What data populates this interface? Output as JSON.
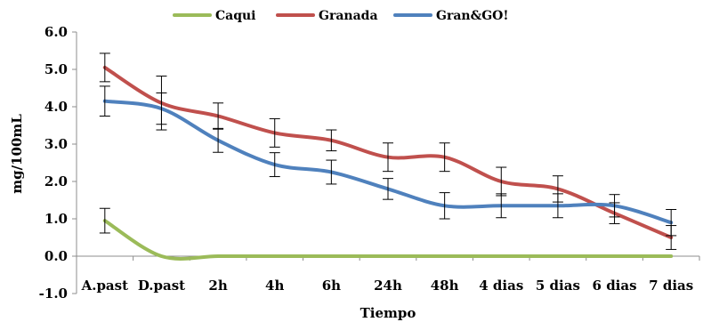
{
  "chart_data": {
    "type": "line",
    "title": "",
    "xlabel": "Tiempo",
    "ylabel": "mg/100mL",
    "ylim": [
      -1.0,
      6.0
    ],
    "yticks": [
      "-1.0",
      "0.0",
      "1.0",
      "2.0",
      "3.0",
      "4.0",
      "5.0",
      "6.0"
    ],
    "categories": [
      "A.past",
      "D.past",
      "2h",
      "4h",
      "6h",
      "24h",
      "48h",
      "4 dias",
      "5 dias",
      "6 dias",
      "7 dias"
    ],
    "grid": false,
    "legend_position": "top-center",
    "series": [
      {
        "name": "Caqui",
        "color": "#9BBB59",
        "values": [
          0.95,
          0.0,
          0.0,
          0.0,
          0.0,
          0.0,
          0.0,
          0.0,
          0.0,
          0.0,
          0.0
        ],
        "errors": [
          0.33,
          null,
          null,
          null,
          null,
          null,
          null,
          null,
          null,
          null,
          null
        ]
      },
      {
        "name": "Granada",
        "color": "#C0504D",
        "values": [
          5.05,
          4.1,
          3.75,
          3.3,
          3.1,
          2.65,
          2.65,
          2.0,
          1.8,
          1.15,
          0.5
        ],
        "errors": [
          0.38,
          0.72,
          0.35,
          0.38,
          0.28,
          0.38,
          0.38,
          0.38,
          0.35,
          0.28,
          0.32
        ]
      },
      {
        "name": "Gran&GO!",
        "color": "#4F81BD",
        "values": [
          4.15,
          3.95,
          3.1,
          2.45,
          2.25,
          1.8,
          1.35,
          1.35,
          1.35,
          1.35,
          0.9
        ],
        "errors": [
          0.4,
          0.42,
          0.32,
          0.32,
          0.32,
          0.28,
          0.35,
          0.32,
          0.32,
          0.3,
          0.35
        ]
      }
    ]
  }
}
